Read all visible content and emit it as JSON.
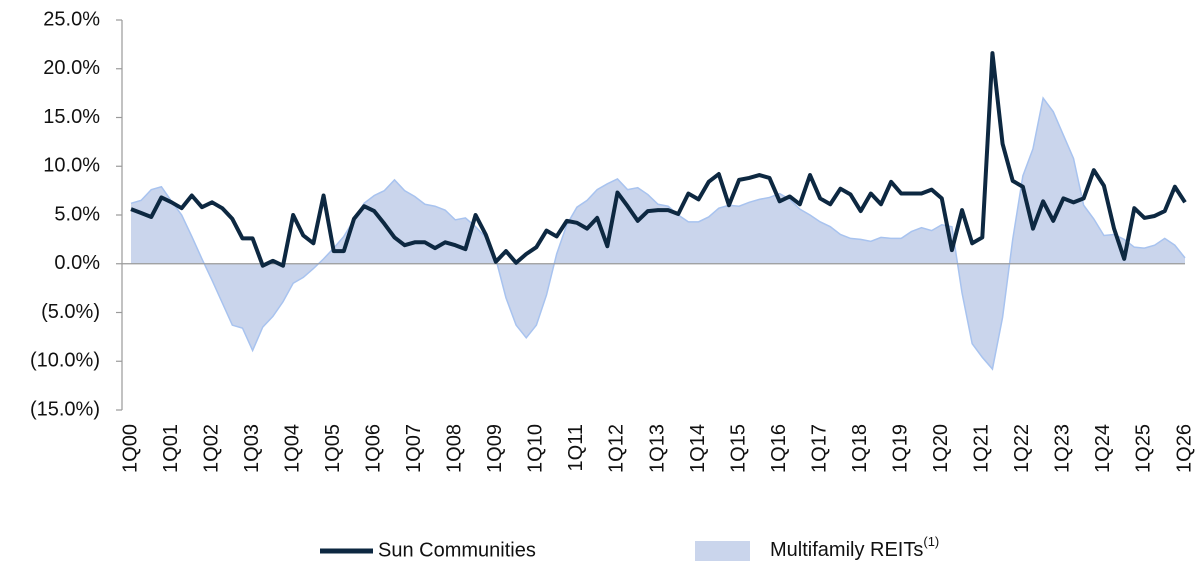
{
  "chart_data": {
    "type": "line-area",
    "categories": [
      "1Q00",
      null,
      null,
      null,
      "1Q01",
      null,
      null,
      null,
      "1Q02",
      null,
      null,
      null,
      "1Q03",
      null,
      null,
      null,
      "1Q04",
      null,
      null,
      null,
      "1Q05",
      null,
      null,
      null,
      "1Q06",
      null,
      null,
      null,
      "1Q07",
      null,
      null,
      null,
      "1Q08",
      null,
      null,
      null,
      "1Q09",
      null,
      null,
      null,
      "1Q10",
      null,
      null,
      null,
      "1Q11",
      null,
      null,
      null,
      "1Q12",
      null,
      null,
      null,
      "1Q13",
      null,
      null,
      null,
      "1Q14",
      null,
      null,
      null,
      "1Q15",
      null,
      null,
      null,
      "1Q16",
      null,
      null,
      null,
      "1Q17",
      null,
      null,
      null,
      "1Q18",
      null,
      null,
      null,
      "1Q19",
      null,
      null,
      null,
      "1Q20",
      null,
      null,
      null,
      "1Q21",
      null,
      null,
      null,
      "1Q22",
      null,
      null,
      null,
      "1Q23",
      null,
      null,
      null,
      "1Q24",
      null,
      null,
      null,
      "1Q25",
      null,
      null,
      null,
      "1Q26"
    ],
    "series": [
      {
        "name": "Sun Communities",
        "kind": "line",
        "color": "#0d2841",
        "values": [
          5.6,
          5.2,
          4.8,
          6.8,
          6.3,
          5.7,
          7.0,
          5.8,
          6.3,
          5.7,
          4.6,
          2.6,
          2.6,
          -0.2,
          0.3,
          -0.2,
          5.0,
          2.9,
          2.1,
          7.0,
          1.3,
          1.3,
          4.6,
          5.9,
          5.4,
          4.1,
          2.7,
          1.9,
          2.2,
          2.2,
          1.6,
          2.2,
          1.9,
          1.5,
          5.0,
          3.0,
          0.2,
          1.3,
          0.1,
          1.0,
          1.7,
          3.4,
          2.8,
          4.4,
          4.2,
          3.6,
          4.7,
          1.8,
          7.3,
          5.9,
          4.4,
          5.4,
          5.5,
          5.5,
          5.1,
          7.2,
          6.6,
          8.4,
          9.2,
          6.0,
          8.6,
          8.8,
          9.1,
          8.8,
          6.4,
          6.9,
          6.1,
          9.1,
          6.7,
          6.1,
          7.7,
          7.1,
          5.4,
          7.2,
          6.1,
          8.4,
          7.2,
          7.2,
          7.2,
          7.6,
          6.7,
          1.4,
          5.5,
          2.1,
          2.7,
          21.6,
          12.3,
          8.5,
          7.9,
          3.6,
          6.4,
          4.4,
          6.7,
          6.3,
          6.7,
          9.6,
          8.0,
          3.6,
          0.5,
          5.7,
          4.7,
          4.9,
          5.4,
          7.9,
          6.3
        ]
      },
      {
        "name": "Multifamily REITs",
        "name_note": "(1)",
        "kind": "area",
        "color": "#cad5ec",
        "edge": "#a8c3ef",
        "values": [
          6.2,
          6.5,
          7.6,
          7.9,
          6.4,
          5.0,
          2.8,
          0.5,
          -1.7,
          -4.0,
          -6.3,
          -6.6,
          -8.9,
          -6.5,
          -5.4,
          -3.9,
          -2.0,
          -1.4,
          -0.5,
          0.5,
          1.6,
          2.8,
          4.5,
          6.2,
          7.0,
          7.5,
          8.6,
          7.5,
          6.9,
          6.1,
          5.9,
          5.5,
          4.5,
          4.7,
          3.8,
          2.7,
          0.5,
          -3.5,
          -6.3,
          -7.6,
          -6.3,
          -3.2,
          1.0,
          4.0,
          5.8,
          6.5,
          7.6,
          8.2,
          8.7,
          7.6,
          7.8,
          7.1,
          6.1,
          5.9,
          5.0,
          4.3,
          4.3,
          4.8,
          5.7,
          6.0,
          5.9,
          6.3,
          6.6,
          6.8,
          7.2,
          6.6,
          5.6,
          5.0,
          4.3,
          3.8,
          3.0,
          2.6,
          2.5,
          2.3,
          2.7,
          2.6,
          2.6,
          3.3,
          3.7,
          3.4,
          4.0,
          3.8,
          -3.0,
          -8.2,
          -9.6,
          -10.8,
          -5.5,
          2.5,
          9.0,
          11.8,
          17.0,
          15.6,
          13.2,
          10.8,
          6.0,
          4.6,
          2.9,
          3.0,
          2.5,
          1.7,
          1.6,
          1.9,
          2.6,
          1.9,
          0.6
        ]
      }
    ],
    "ylim": [
      -15,
      25
    ],
    "yticks": [
      {
        "value": -15,
        "label": "(15.0%)"
      },
      {
        "value": -10,
        "label": "(10.0%)"
      },
      {
        "value": -5,
        "label": "(5.0%)"
      },
      {
        "value": 0,
        "label": "0.0%"
      },
      {
        "value": 5,
        "label": "5.0%"
      },
      {
        "value": 10,
        "label": "10.0%"
      },
      {
        "value": 15,
        "label": "15.0%"
      },
      {
        "value": 20,
        "label": "20.0%"
      },
      {
        "value": 25,
        "label": "25.0%"
      }
    ],
    "legend": "bottom"
  }
}
